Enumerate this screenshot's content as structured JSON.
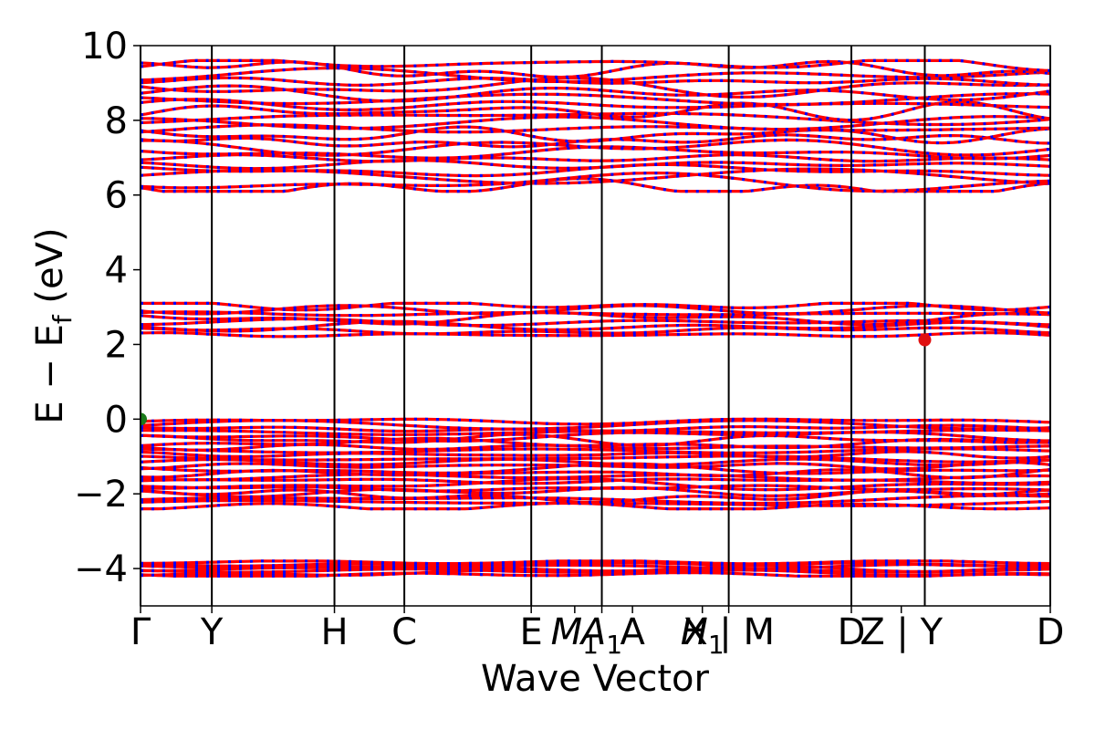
{
  "chart_data": {
    "type": "line",
    "title": "",
    "xlabel": "Wave Vector",
    "ylabel": "E − E_f (eV)",
    "ylabel_parts": {
      "main": "E − E",
      "sub": "f",
      "unit": " (eV)"
    },
    "ylim": [
      -5,
      10
    ],
    "yticks": [
      {
        "value": 10,
        "label": "10"
      },
      {
        "value": 8,
        "label": "8"
      },
      {
        "value": 6,
        "label": "6"
      },
      {
        "value": 4,
        "label": "4"
      },
      {
        "value": 2,
        "label": "2"
      },
      {
        "value": 0,
        "label": "0"
      },
      {
        "value": -2,
        "label": "−2"
      },
      {
        "value": -4,
        "label": "−4"
      }
    ],
    "xlim": [
      0,
      12.76
    ],
    "kpoints": [
      {
        "x": 0.0,
        "label": "Γ"
      },
      {
        "x": 1.0,
        "label": "Y"
      },
      {
        "x": 2.72,
        "label": "H"
      },
      {
        "x": 3.7,
        "label": "C"
      },
      {
        "x": 5.48,
        "label": "E"
      },
      {
        "x": 6.09,
        "label": "M",
        "sub": "1",
        "italic": true
      },
      {
        "x": 6.47,
        "label": "A",
        "sub": "1",
        "italic": true
      },
      {
        "x": 6.9,
        "label": "A"
      },
      {
        "x": 7.88,
        "label": "H",
        "sub": "1",
        "italic": true
      },
      {
        "x": 8.25,
        "label": "X | M"
      },
      {
        "x": 9.97,
        "label": "D"
      },
      {
        "x": 10.67,
        "label": "Z | Y"
      },
      {
        "x": 12.76,
        "label": "D"
      }
    ],
    "vlines": [
      0,
      1.0,
      2.72,
      3.7,
      5.48,
      6.47,
      8.25,
      9.97,
      11.0,
      12.76
    ],
    "band_groups": [
      {
        "name": "conduction_upper",
        "range": [
          6.1,
          9.6
        ],
        "count": 22
      },
      {
        "name": "conduction_lower",
        "range": [
          2.2,
          3.1
        ],
        "count": 8
      },
      {
        "name": "valence_upper",
        "range": [
          -2.4,
          0.0
        ],
        "count": 24
      },
      {
        "name": "valence_deep",
        "range": [
          -4.2,
          -3.8
        ],
        "count": 7
      }
    ],
    "special_points": [
      {
        "label": "VBM",
        "x": 0.0,
        "y": 0.0,
        "color": "#1a7a1a"
      },
      {
        "label": "CBM",
        "x": 11.0,
        "y": 2.12,
        "color": "#e01010"
      }
    ],
    "colors": {
      "band_main": "#ff0000",
      "band_dash": "#0000ff",
      "vline": "#000000"
    },
    "grid": false,
    "legend": "none"
  }
}
